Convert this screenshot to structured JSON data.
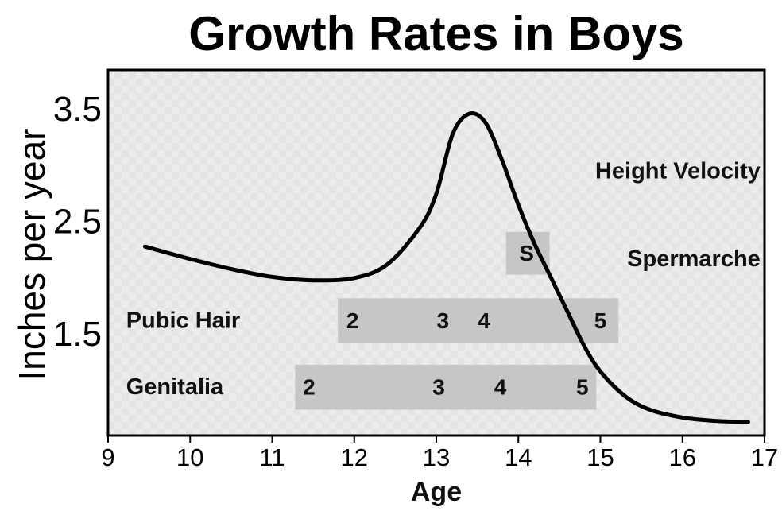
{
  "title": "Growth Rates in Boys",
  "chart_data": {
    "type": "line",
    "title": "Growth Rates in Boys",
    "xlabel": "Age",
    "ylabel": "Inches per year",
    "xlim": [
      9,
      17
    ],
    "ylim": [
      0.6,
      3.85
    ],
    "x_ticks": [
      "9",
      "10",
      "11",
      "12",
      "13",
      "14",
      "15",
      "16",
      "17"
    ],
    "y_ticks": [
      {
        "label": "3.5",
        "value": 3.5
      },
      {
        "label": "2.5",
        "value": 2.5
      },
      {
        "label": "1.5",
        "value": 1.5
      }
    ],
    "grid": false,
    "series": [
      {
        "name": "Height Velocity",
        "color": "#000000",
        "x": [
          9.45,
          10.0,
          10.5,
          11.0,
          11.5,
          12.0,
          12.4,
          12.8,
          13.0,
          13.2,
          13.4,
          13.6,
          13.8,
          14.0,
          14.2,
          14.4,
          14.6,
          14.8,
          15.0,
          15.3,
          15.6,
          16.0,
          16.4,
          16.8
        ],
        "y": [
          2.28,
          2.17,
          2.08,
          2.01,
          1.98,
          2.0,
          2.12,
          2.45,
          2.75,
          3.28,
          3.46,
          3.38,
          3.05,
          2.65,
          2.3,
          2.0,
          1.7,
          1.4,
          1.17,
          0.95,
          0.83,
          0.76,
          0.73,
          0.72
        ]
      }
    ],
    "bands": [
      {
        "name": "Spermarche",
        "marker": "S",
        "x_start": 13.85,
        "x_end": 14.38,
        "y_center": 2.22,
        "height": 0.38,
        "stages": [
          {
            "label": "S",
            "x": 14.1
          }
        ]
      },
      {
        "name": "Pubic Hair",
        "x_start": 11.8,
        "x_end": 15.22,
        "y_center": 1.62,
        "height": 0.4,
        "stages": [
          {
            "label": "2",
            "x": 11.98
          },
          {
            "label": "3",
            "x": 13.08
          },
          {
            "label": "4",
            "x": 13.58
          },
          {
            "label": "5",
            "x": 15.0
          }
        ]
      },
      {
        "name": "Genitalia",
        "x_start": 11.28,
        "x_end": 14.95,
        "y_center": 1.03,
        "height": 0.4,
        "stages": [
          {
            "label": "2",
            "x": 11.45
          },
          {
            "label": "3",
            "x": 13.03
          },
          {
            "label": "4",
            "x": 13.78
          },
          {
            "label": "5",
            "x": 14.78
          }
        ]
      }
    ],
    "annotations": [
      {
        "text": "Height Velocity",
        "x": 16.95,
        "y": 2.95,
        "anchor": "end"
      },
      {
        "text": "Spermarche",
        "x": 16.95,
        "y": 2.17,
        "anchor": "end"
      },
      {
        "text": "Pubic Hair",
        "x": 9.22,
        "y": 1.62,
        "anchor": "start"
      },
      {
        "text": "Genitalia",
        "x": 9.22,
        "y": 1.03,
        "anchor": "start"
      }
    ],
    "colors": {
      "plot_background": "#ececec",
      "band_fill": "#c6c6c6",
      "frame": "#000000"
    }
  }
}
